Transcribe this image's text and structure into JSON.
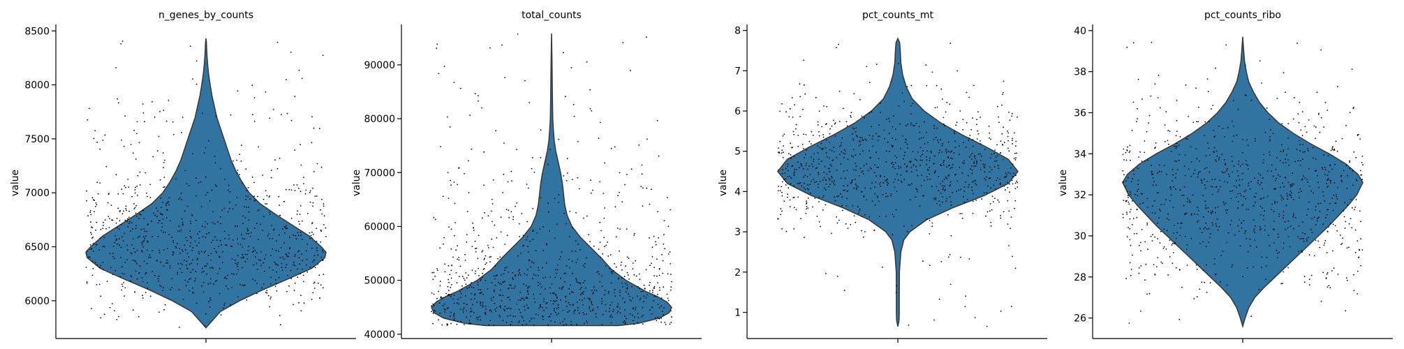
{
  "chart_data": [
    {
      "type": "violin",
      "title": "n_genes_by_counts",
      "ylabel": "value",
      "ylim": [
        5650,
        8560
      ],
      "yticks": [
        6000,
        6500,
        7000,
        7500,
        8000,
        8500
      ],
      "violin_profile": [
        [
          5750,
          0
        ],
        [
          5800,
          0.04
        ],
        [
          5900,
          0.12
        ],
        [
          6000,
          0.28
        ],
        [
          6100,
          0.47
        ],
        [
          6200,
          0.68
        ],
        [
          6300,
          0.88
        ],
        [
          6400,
          0.99
        ],
        [
          6450,
          1.0
        ],
        [
          6500,
          0.96
        ],
        [
          6600,
          0.86
        ],
        [
          6700,
          0.72
        ],
        [
          6800,
          0.58
        ],
        [
          6900,
          0.45
        ],
        [
          7000,
          0.36
        ],
        [
          7100,
          0.3
        ],
        [
          7200,
          0.25
        ],
        [
          7300,
          0.21
        ],
        [
          7400,
          0.18
        ],
        [
          7500,
          0.15
        ],
        [
          7600,
          0.12
        ],
        [
          7700,
          0.09
        ],
        [
          7800,
          0.07
        ],
        [
          7900,
          0.05
        ],
        [
          8000,
          0.035
        ],
        [
          8100,
          0.022
        ],
        [
          8200,
          0.013
        ],
        [
          8300,
          0.007
        ],
        [
          8400,
          0.003
        ],
        [
          8430,
          0
        ]
      ]
    },
    {
      "type": "violin",
      "title": "total_counts",
      "ylabel": "value",
      "ylim": [
        39200,
        97500
      ],
      "yticks": [
        40000,
        50000,
        60000,
        70000,
        80000,
        90000
      ],
      "violin_profile": [
        [
          41600,
          0.55
        ],
        [
          42000,
          0.72
        ],
        [
          43000,
          0.9
        ],
        [
          44000,
          0.98
        ],
        [
          45000,
          1.0
        ],
        [
          46000,
          0.96
        ],
        [
          47000,
          0.88
        ],
        [
          48000,
          0.78
        ],
        [
          50000,
          0.62
        ],
        [
          52000,
          0.5
        ],
        [
          54000,
          0.42
        ],
        [
          56000,
          0.33
        ],
        [
          58000,
          0.24
        ],
        [
          60000,
          0.17
        ],
        [
          62000,
          0.13
        ],
        [
          64000,
          0.11
        ],
        [
          66000,
          0.1
        ],
        [
          68000,
          0.09
        ],
        [
          70000,
          0.075
        ],
        [
          72000,
          0.055
        ],
        [
          74000,
          0.035
        ],
        [
          76000,
          0.022
        ],
        [
          78000,
          0.015
        ],
        [
          80000,
          0.01
        ],
        [
          84000,
          0.007
        ],
        [
          90000,
          0.004
        ],
        [
          95800,
          0
        ]
      ]
    },
    {
      "type": "violin",
      "title": "pct_counts_mt",
      "ylabel": "value",
      "ylim": [
        0.35,
        8.15
      ],
      "yticks": [
        1,
        2,
        3,
        4,
        5,
        6,
        7,
        8
      ],
      "violin_profile": [
        [
          0.65,
          0
        ],
        [
          0.8,
          0.01
        ],
        [
          1.0,
          0.012
        ],
        [
          1.5,
          0.012
        ],
        [
          2.0,
          0.013
        ],
        [
          2.5,
          0.025
        ],
        [
          2.8,
          0.05
        ],
        [
          3.0,
          0.1
        ],
        [
          3.3,
          0.24
        ],
        [
          3.6,
          0.46
        ],
        [
          3.9,
          0.72
        ],
        [
          4.2,
          0.92
        ],
        [
          4.5,
          1.0
        ],
        [
          4.8,
          0.92
        ],
        [
          5.1,
          0.74
        ],
        [
          5.4,
          0.54
        ],
        [
          5.7,
          0.36
        ],
        [
          6.0,
          0.22
        ],
        [
          6.3,
          0.12
        ],
        [
          6.6,
          0.07
        ],
        [
          6.9,
          0.04
        ],
        [
          7.2,
          0.025
        ],
        [
          7.5,
          0.02
        ],
        [
          7.7,
          0.015
        ],
        [
          7.8,
          0
        ]
      ]
    },
    {
      "type": "violin",
      "title": "pct_counts_ribo",
      "ylabel": "value",
      "ylim": [
        25.0,
        40.3
      ],
      "yticks": [
        26,
        28,
        30,
        32,
        34,
        36,
        38,
        40
      ],
      "violin_profile": [
        [
          25.6,
          0
        ],
        [
          26.0,
          0.02
        ],
        [
          26.5,
          0.05
        ],
        [
          27.0,
          0.1
        ],
        [
          27.5,
          0.18
        ],
        [
          28.0,
          0.27
        ],
        [
          28.5,
          0.36
        ],
        [
          29.0,
          0.45
        ],
        [
          29.5,
          0.54
        ],
        [
          30.0,
          0.63
        ],
        [
          30.5,
          0.72
        ],
        [
          31.0,
          0.8
        ],
        [
          31.5,
          0.88
        ],
        [
          32.0,
          0.95
        ],
        [
          32.6,
          1.0
        ],
        [
          33.0,
          0.96
        ],
        [
          33.5,
          0.86
        ],
        [
          34.0,
          0.72
        ],
        [
          34.5,
          0.56
        ],
        [
          35.0,
          0.42
        ],
        [
          35.5,
          0.3
        ],
        [
          36.0,
          0.21
        ],
        [
          36.5,
          0.14
        ],
        [
          37.0,
          0.09
        ],
        [
          37.5,
          0.05
        ],
        [
          38.0,
          0.03
        ],
        [
          38.5,
          0.015
        ],
        [
          39.0,
          0.008
        ],
        [
          39.7,
          0
        ]
      ]
    }
  ]
}
